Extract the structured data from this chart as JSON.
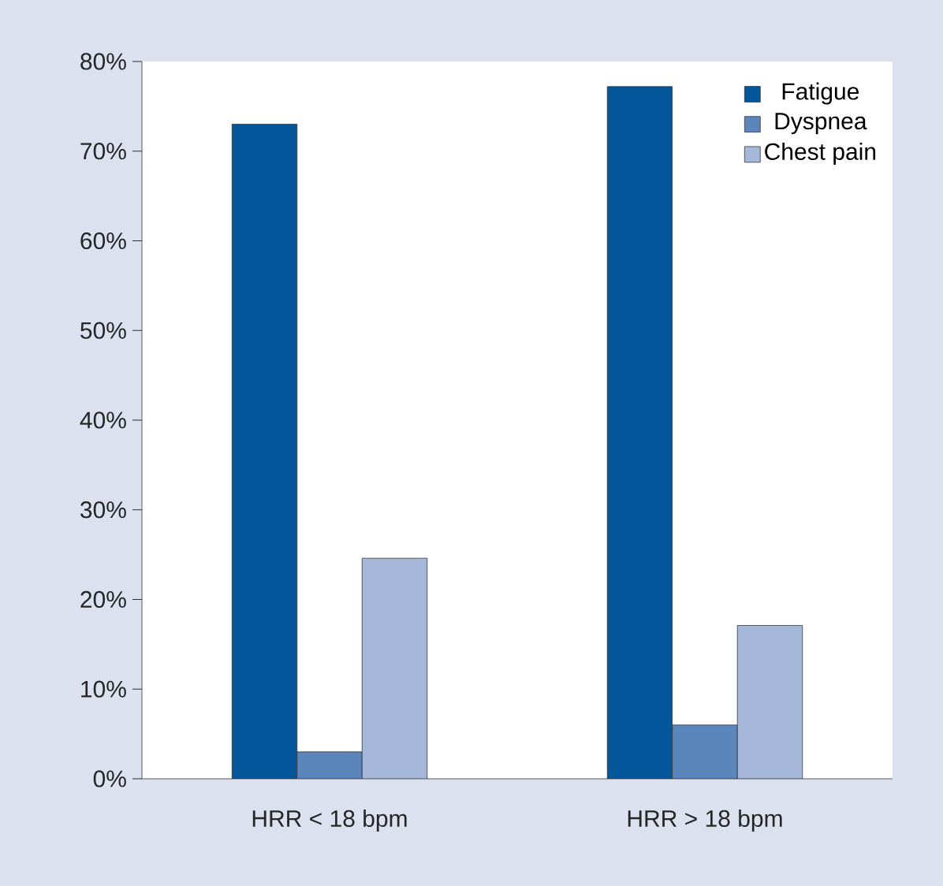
{
  "chart_data": {
    "type": "bar",
    "categories": [
      "HRR < 18 bpm",
      "HRR > 18 bpm"
    ],
    "series": [
      {
        "name": "Fatigue",
        "color": "#03569a",
        "values": [
          73,
          77.2
        ]
      },
      {
        "name": "Dyspnea",
        "color": "#5b86bb",
        "values": [
          3,
          6
        ]
      },
      {
        "name": "Chest pain",
        "color": "#a5b8da",
        "values": [
          24.6,
          17.1
        ]
      }
    ],
    "ylim": [
      0,
      80
    ],
    "yticks": [
      {
        "value": 0,
        "label": "0%"
      },
      {
        "value": 10,
        "label": "10%"
      },
      {
        "value": 20,
        "label": "20%"
      },
      {
        "value": 30,
        "label": "30%"
      },
      {
        "value": 40,
        "label": "40%"
      },
      {
        "value": 50,
        "label": "50%"
      },
      {
        "value": 60,
        "label": "60%"
      },
      {
        "value": 70,
        "label": "70%"
      },
      {
        "value": 80,
        "label": "80%"
      }
    ],
    "grid": false,
    "legend": "top right"
  }
}
